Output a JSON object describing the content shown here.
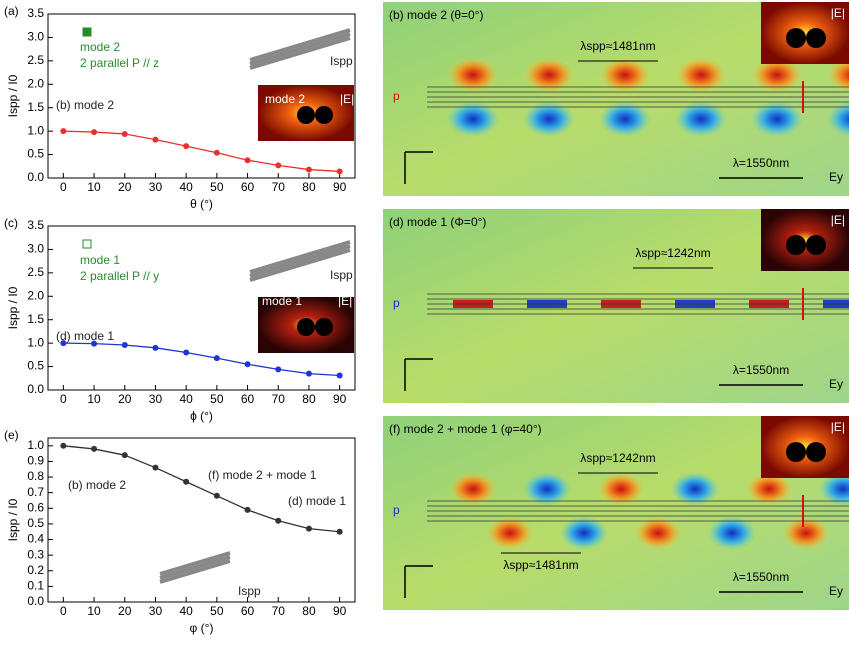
{
  "chart_data": [
    {
      "type": "line",
      "panel": "(a)",
      "xlabel": "θ (°)",
      "ylabel": "Ispp / I0",
      "x": [
        0,
        10,
        20,
        30,
        40,
        50,
        60,
        70,
        80,
        90
      ],
      "series": [
        {
          "color": "#e8312f",
          "values": [
            1.0,
            0.98,
            0.94,
            0.82,
            0.68,
            0.54,
            0.38,
            0.27,
            0.18,
            0.14
          ]
        }
      ],
      "xlim": [
        -5,
        95
      ],
      "xticks": [
        0,
        10,
        20,
        30,
        40,
        50,
        60,
        70,
        80,
        90
      ],
      "ylim": [
        0,
        3.5
      ],
      "yticks": [
        {
          "value": 0,
          "label": "0.0"
        },
        {
          "value": 0.5,
          "label": "0.5"
        },
        {
          "value": 1,
          "label": "1.0"
        },
        {
          "value": 1.5,
          "label": "1.5"
        },
        {
          "value": 2,
          "label": "2.0"
        },
        {
          "value": 2.5,
          "label": "2.5"
        },
        {
          "value": 3,
          "label": "3.0"
        },
        {
          "value": 3.5,
          "label": "3.5"
        }
      ],
      "annotations": [
        "mode 2",
        "2 parallel P // z",
        "(b) mode 2",
        "mode 2",
        "|E|",
        "Ispp"
      ]
    },
    {
      "type": "line",
      "panel": "(c)",
      "xlabel": "ϕ (°)",
      "ylabel": "Ispp / I0",
      "x": [
        0,
        10,
        20,
        30,
        40,
        50,
        60,
        70,
        80,
        90
      ],
      "series": [
        {
          "color": "#1f35d6",
          "values": [
            1.0,
            0.99,
            0.96,
            0.9,
            0.8,
            0.68,
            0.55,
            0.44,
            0.35,
            0.31
          ]
        }
      ],
      "xlim": [
        -5,
        95
      ],
      "xticks": [
        0,
        10,
        20,
        30,
        40,
        50,
        60,
        70,
        80,
        90
      ],
      "ylim": [
        0,
        3.5
      ],
      "yticks": [
        {
          "value": 0,
          "label": "0.0"
        },
        {
          "value": 0.5,
          "label": "0.5"
        },
        {
          "value": 1,
          "label": "1.0"
        },
        {
          "value": 1.5,
          "label": "1.5"
        },
        {
          "value": 2,
          "label": "2.0"
        },
        {
          "value": 2.5,
          "label": "2.5"
        },
        {
          "value": 3,
          "label": "3.0"
        },
        {
          "value": 3.5,
          "label": "3.5"
        }
      ],
      "annotations": [
        "mode 1",
        "2 parallel P // y",
        "(d) mode 1",
        "mode 1",
        "|E|",
        "Ispp"
      ]
    },
    {
      "type": "line",
      "panel": "(e)",
      "xlabel": "φ (°)",
      "ylabel": "Ispp / I0",
      "x": [
        0,
        10,
        20,
        30,
        40,
        50,
        60,
        70,
        80,
        90
      ],
      "series": [
        {
          "color": "#333333",
          "values": [
            1.0,
            0.98,
            0.94,
            0.86,
            0.77,
            0.68,
            0.59,
            0.52,
            0.47,
            0.45
          ]
        }
      ],
      "xlim": [
        -5,
        95
      ],
      "xticks": [
        0,
        10,
        20,
        30,
        40,
        50,
        60,
        70,
        80,
        90
      ],
      "ylim": [
        0,
        1.05
      ],
      "yticks": [
        {
          "value": 0,
          "label": "0.0"
        },
        {
          "value": 0.1,
          "label": "0.1"
        },
        {
          "value": 0.2,
          "label": "0.2"
        },
        {
          "value": 0.3,
          "label": "0.3"
        },
        {
          "value": 0.4,
          "label": "0.4"
        },
        {
          "value": 0.5,
          "label": "0.5"
        },
        {
          "value": 0.6,
          "label": "0.6"
        },
        {
          "value": 0.7,
          "label": "0.7"
        },
        {
          "value": 0.8,
          "label": "0.8"
        },
        {
          "value": 0.9,
          "label": "0.9"
        },
        {
          "value": 1,
          "label": "1.0"
        }
      ],
      "annotations": [
        "(b) mode 2",
        "(f) mode 2 + mode 1",
        "(d) mode 1",
        "Ispp"
      ]
    }
  ],
  "field_panels": [
    {
      "title": "(b) mode 2 (θ=0°)",
      "spacing": "λspp≈1481nm",
      "scale": "λ=1550nm",
      "component": "Ey",
      "inset": "|E|",
      "source": "p"
    },
    {
      "title": "(d) mode 1 (Φ=0°)",
      "spacing": "λspp≈1242nm",
      "scale": "λ=1550nm",
      "component": "Ey",
      "inset": "|E|",
      "source": "p"
    },
    {
      "title": "(f) mode 2 + mode 1 (φ=40°)",
      "spacing": "λspp≈1242nm",
      "spacing2": "λspp≈1481nm",
      "scale": "λ=1550nm",
      "component": "Ey",
      "inset": "|E|",
      "source": "p"
    }
  ]
}
